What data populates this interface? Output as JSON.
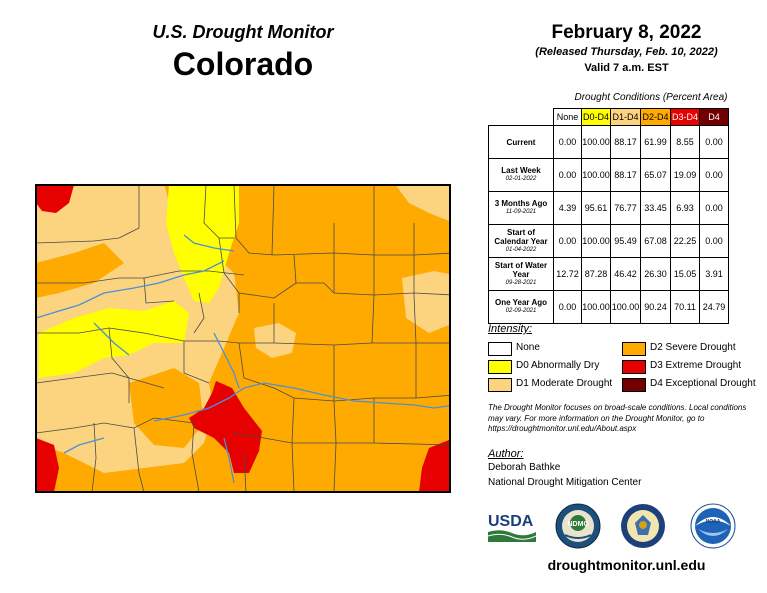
{
  "header": {
    "title": "U.S. Drought Monitor",
    "state": "Colorado"
  },
  "release": {
    "date": "February 8, 2022",
    "released": "(Released Thursday, Feb. 10, 2022)",
    "valid": "Valid 7 a.m. EST"
  },
  "table": {
    "caption": "Drought Conditions (Percent Area)",
    "columns": [
      "None",
      "D0-D4",
      "D1-D4",
      "D2-D4",
      "D3-D4",
      "D4"
    ],
    "rows": [
      {
        "label": "Current",
        "sublabel": "",
        "values": [
          "0.00",
          "100.00",
          "88.17",
          "61.99",
          "8.55",
          "0.00"
        ]
      },
      {
        "label": "Last Week",
        "sublabel": "02-01-2022",
        "values": [
          "0.00",
          "100.00",
          "88.17",
          "65.07",
          "19.09",
          "0.00"
        ]
      },
      {
        "label": "3 Months Ago",
        "sublabel": "11-09-2021",
        "values": [
          "4.39",
          "95.61",
          "76.77",
          "33.45",
          "6.93",
          "0.00"
        ]
      },
      {
        "label": "Start of Calendar Year",
        "sublabel": "01-04-2022",
        "values": [
          "0.00",
          "100.00",
          "95.49",
          "67.08",
          "22.25",
          "0.00"
        ]
      },
      {
        "label": "Start of Water Year",
        "sublabel": "09-28-2021",
        "values": [
          "12.72",
          "87.28",
          "46.42",
          "26.30",
          "15.05",
          "3.91"
        ]
      },
      {
        "label": "One Year Ago",
        "sublabel": "02-09-2021",
        "values": [
          "0.00",
          "100.00",
          "100.00",
          "90.24",
          "70.11",
          "24.79"
        ]
      }
    ]
  },
  "legend": {
    "heading": "Intensity:",
    "items": [
      {
        "label": "None",
        "color": "#ffffff"
      },
      {
        "label": "D0 Abnormally Dry",
        "color": "#ffff00"
      },
      {
        "label": "D1 Moderate Drought",
        "color": "#fcd37f"
      },
      {
        "label": "D2 Severe Drought",
        "color": "#ffaa00"
      },
      {
        "label": "D3 Extreme Drought",
        "color": "#e60000"
      },
      {
        "label": "D4 Exceptional Drought",
        "color": "#730000"
      }
    ]
  },
  "note": "The Drought Monitor focuses on broad-scale conditions. Local conditions may vary. For more information on the Drought Monitor, go to https://droughtmonitor.unl.edu/About.aspx",
  "author": {
    "heading": "Author:",
    "name": "Deborah Bathke",
    "org": "National Drought Mitigation Center"
  },
  "logos": {
    "usda": "USDA",
    "ndmc": "NDMC",
    "noaa": "NOAA"
  },
  "url": "droughtmonitor.unl.edu",
  "colors": {
    "river": "#4a90d9",
    "county_line": "#4a4a4a"
  }
}
